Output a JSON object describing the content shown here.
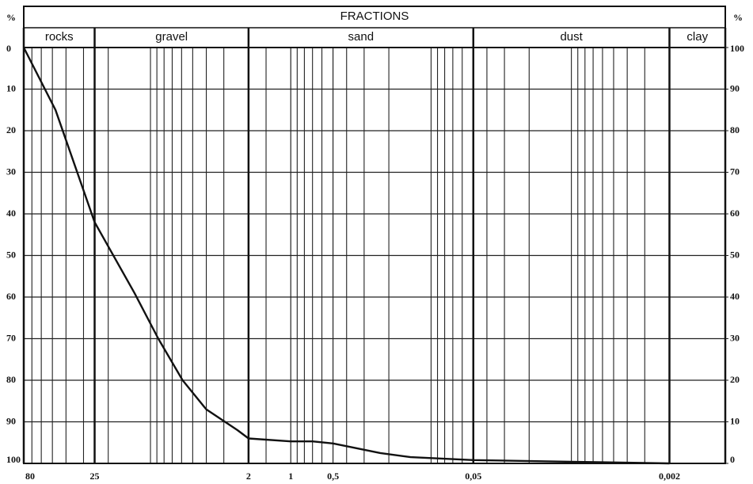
{
  "chart_data": {
    "type": "line",
    "title": "FRACTIONS",
    "y_label": "%",
    "y2_label": "%",
    "fractions": {
      "names": [
        "rocks",
        "gravel",
        "sand",
        "dust",
        "clay"
      ],
      "bounds": [
        80,
        25,
        2,
        0.05,
        0.002,
        0.0008
      ]
    },
    "x": [
      80,
      47.5,
      25,
      13,
      8.8,
      5.9,
      4,
      2.4,
      2,
      1,
      0.7,
      0.5,
      0.23,
      0.14,
      0.05,
      0.01,
      0.002
    ],
    "values": [
      0,
      15,
      42,
      59,
      70,
      80,
      87,
      92,
      94,
      94.7,
      94.7,
      95.2,
      97.5,
      98.5,
      99.2,
      99.6,
      100
    ],
    "color": "#111111",
    "log_x": true,
    "xlim": [
      80,
      0.0008
    ],
    "xticks": [
      80,
      25,
      2,
      1,
      {
        "value": 0.5,
        "label": "0,5"
      },
      {
        "value": 0.05,
        "label": "0,05"
      },
      {
        "value": 0.002,
        "label": "0,002"
      }
    ],
    "xgrid": [
      70,
      60,
      50,
      40,
      30,
      20,
      10,
      9,
      8,
      7,
      6,
      5,
      4,
      3,
      1.5,
      0.9,
      0.8,
      0.7,
      0.6,
      0.4,
      0.3,
      0.2,
      0.1,
      0.09,
      0.08,
      0.07,
      0.06,
      0.04,
      0.03,
      0.02,
      0.01,
      0.009,
      0.008,
      0.007,
      0.006,
      0.005,
      0.004,
      0.003
    ],
    "ylim": [
      0,
      100
    ],
    "yticks": [
      0,
      10,
      20,
      30,
      40,
      50,
      60,
      70,
      80,
      90,
      100
    ],
    "y2lim": [
      100,
      0
    ],
    "y2ticks": [
      100,
      90,
      80,
      70,
      60,
      50,
      40,
      30,
      20,
      10,
      0
    ],
    "grid": true
  }
}
